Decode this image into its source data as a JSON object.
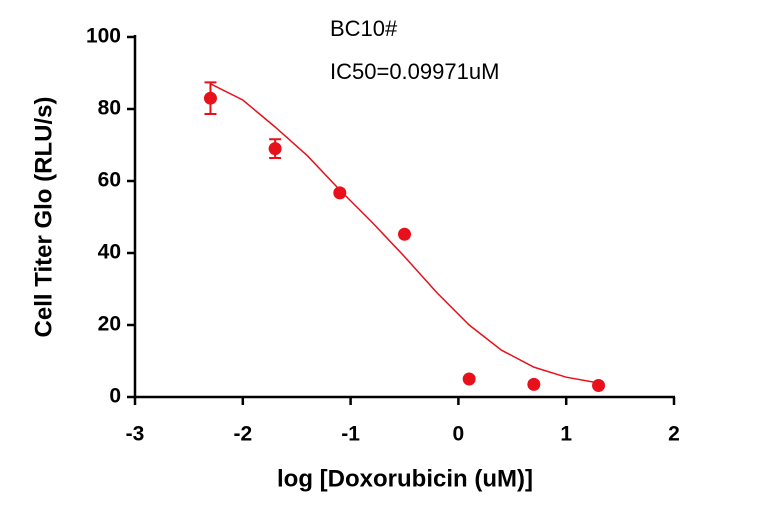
{
  "chart_data": {
    "type": "scatter",
    "annotations": [
      "BC10#",
      "IC50=0.09971uM"
    ],
    "x_label": "log [Doxorubicin (uM)]",
    "y_label": "Cell Titer Glo (RLU/s)",
    "x": [
      -2.3,
      -1.7,
      -1.1,
      -0.5,
      0.1,
      0.7,
      1.3
    ],
    "values": [
      83,
      69,
      56.7,
      45.2,
      5,
      3.5,
      3.2
    ],
    "errors": [
      4.4,
      2.6,
      0,
      0,
      0,
      0,
      0
    ],
    "color": "#e8101a",
    "fit": {
      "x": [
        -2.3,
        -2.0,
        -1.7,
        -1.4,
        -1.1,
        -0.8,
        -0.5,
        -0.2,
        0.1,
        0.4,
        0.7,
        1.0,
        1.3
      ],
      "values": [
        87,
        82.5,
        75,
        67,
        57.5,
        48.5,
        39,
        29,
        20,
        13,
        8.3,
        5.5,
        3.9
      ]
    },
    "xlim": [
      -3,
      2
    ],
    "xticks": [
      -3,
      -2,
      -1,
      0,
      1,
      2
    ],
    "ylim": [
      0,
      100
    ],
    "yticks": [
      0,
      20,
      40,
      60,
      80,
      100
    ]
  }
}
